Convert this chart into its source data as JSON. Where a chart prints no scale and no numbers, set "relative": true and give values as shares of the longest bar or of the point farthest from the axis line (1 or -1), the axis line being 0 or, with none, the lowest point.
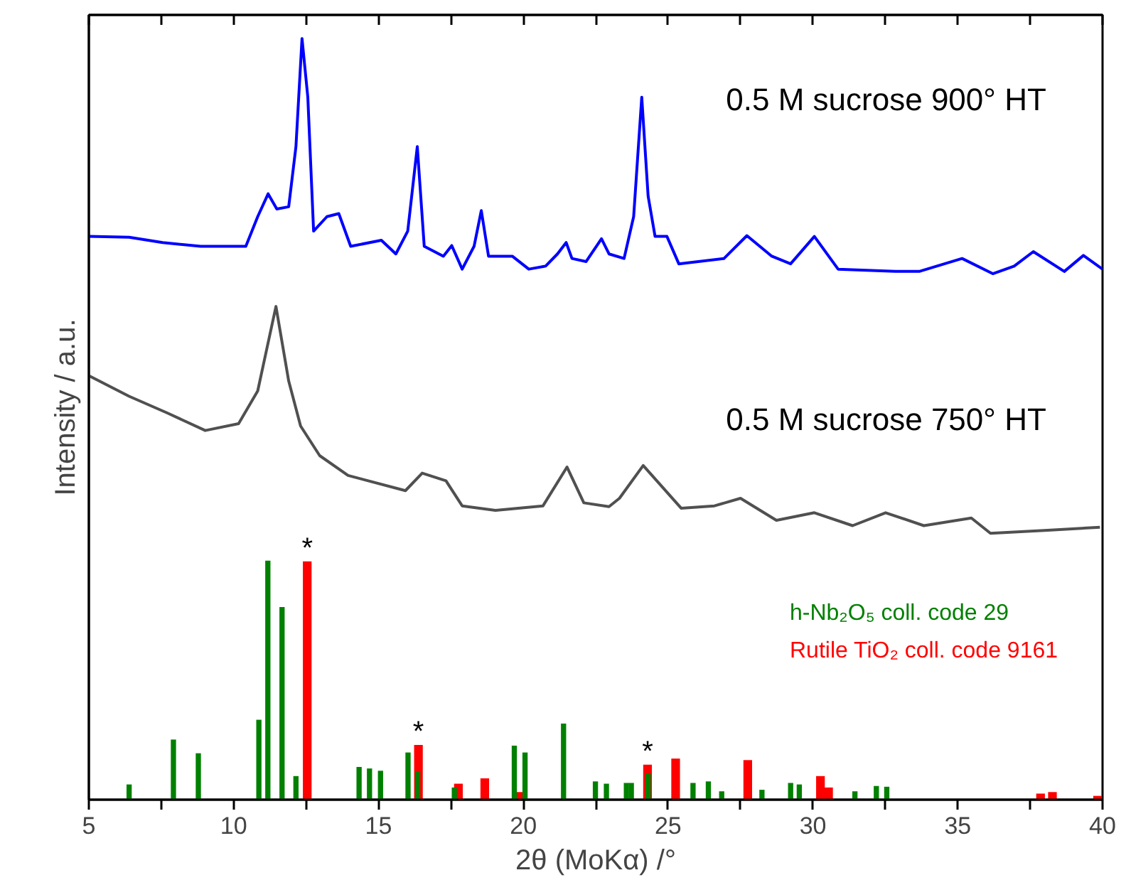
{
  "chart_data": {
    "type": "line",
    "relative": true,
    "xlabel": "2θ (MoKα) /°",
    "ylabel": "Intensity / a.u.",
    "xlim": [
      5,
      40
    ],
    "xticks": [
      5,
      10,
      15,
      20,
      25,
      30,
      35,
      40
    ],
    "grid": false,
    "annotations": [
      {
        "text": "*",
        "x": 12.54,
        "y": 0.313
      },
      {
        "text": "*",
        "x": 16.38,
        "y": 0.072
      },
      {
        "text": "*",
        "x": 24.29,
        "y": 0.046
      }
    ],
    "series": [
      {
        "name": "0.5 M sucrose 900° HT",
        "color": "#0000ff",
        "x": [
          5.0,
          6.39,
          7.55,
          8.86,
          10.42,
          10.83,
          11.19,
          11.49,
          11.9,
          12.15,
          12.36,
          12.56,
          12.76,
          13.22,
          13.63,
          14.04,
          15.1,
          15.6,
          16.01,
          16.34,
          16.58,
          17.24,
          17.53,
          17.89,
          18.3,
          18.55,
          18.8,
          19.62,
          20.19,
          20.77,
          21.18,
          21.48,
          21.68,
          22.17,
          22.7,
          22.96,
          23.48,
          23.81,
          24.09,
          24.31,
          24.55,
          24.96,
          25.37,
          26.93,
          27.72,
          28.58,
          29.23,
          30.05,
          30.87,
          32.85,
          33.67,
          35.15,
          36.21,
          36.95,
          37.61,
          38.68,
          39.34,
          40.0
        ],
        "values": [
          0.74,
          0.739,
          0.732,
          0.727,
          0.727,
          0.766,
          0.796,
          0.776,
          0.779,
          0.858,
          1.0,
          0.923,
          0.747,
          0.766,
          0.77,
          0.727,
          0.735,
          0.717,
          0.747,
          0.858,
          0.727,
          0.714,
          0.728,
          0.697,
          0.727,
          0.774,
          0.714,
          0.714,
          0.697,
          0.701,
          0.717,
          0.732,
          0.711,
          0.707,
          0.737,
          0.717,
          0.711,
          0.766,
          0.923,
          0.793,
          0.74,
          0.74,
          0.704,
          0.711,
          0.741,
          0.714,
          0.704,
          0.74,
          0.697,
          0.694,
          0.694,
          0.711,
          0.691,
          0.701,
          0.72,
          0.694,
          0.715,
          0.697
        ]
      },
      {
        "name": "0.5 M sucrose 750° HT",
        "color": "#505050",
        "x": [
          5.0,
          6.39,
          7.71,
          9.02,
          10.17,
          10.83,
          11.46,
          11.9,
          12.31,
          12.97,
          13.95,
          15.93,
          16.51,
          17.33,
          17.89,
          19.04,
          20.68,
          21.51,
          22.09,
          22.96,
          23.32,
          24.14,
          25.45,
          26.6,
          27.5,
          28.74,
          30.05,
          31.37,
          32.51,
          33.83,
          35.47,
          36.13,
          38.1,
          39.91
        ],
        "values": [
          0.557,
          0.53,
          0.508,
          0.485,
          0.494,
          0.537,
          0.648,
          0.55,
          0.491,
          0.452,
          0.426,
          0.406,
          0.429,
          0.419,
          0.386,
          0.38,
          0.386,
          0.437,
          0.39,
          0.385,
          0.396,
          0.439,
          0.383,
          0.386,
          0.396,
          0.367,
          0.377,
          0.36,
          0.377,
          0.36,
          0.37,
          0.35,
          0.354,
          0.358
        ]
      },
      {
        "name": "Rutile TiO₂ coll. code 9161",
        "type": "bar",
        "color": "#ff0000",
        "x": [
          12.54,
          16.38,
          17.76,
          18.67,
          19.87,
          24.29,
          25.26,
          27.75,
          30.26,
          30.54,
          37.86,
          38.27,
          39.83
        ],
        "values": [
          0.313,
          0.072,
          0.021,
          0.028,
          0.01,
          0.046,
          0.054,
          0.052,
          0.031,
          0.016,
          0.008,
          0.01,
          0.005
        ]
      },
      {
        "name": "h-Nb₂O₅ coll. code 29",
        "type": "bar",
        "color": "#008000",
        "x": [
          6.39,
          7.92,
          8.78,
          10.87,
          11.18,
          11.67,
          12.15,
          14.33,
          14.69,
          15.07,
          16.02,
          16.35,
          17.62,
          19.69,
          20.06,
          21.39,
          22.49,
          22.87,
          23.56,
          23.73,
          24.31,
          25.86,
          26.39,
          26.85,
          28.24,
          29.23,
          29.53,
          31.45,
          32.19,
          32.55
        ],
        "values": [
          0.02,
          0.079,
          0.061,
          0.105,
          0.314,
          0.253,
          0.031,
          0.043,
          0.041,
          0.038,
          0.062,
          0.037,
          0.016,
          0.071,
          0.062,
          0.1,
          0.024,
          0.021,
          0.022,
          0.022,
          0.034,
          0.022,
          0.024,
          0.011,
          0.013,
          0.022,
          0.02,
          0.011,
          0.018,
          0.017
        ]
      }
    ]
  }
}
